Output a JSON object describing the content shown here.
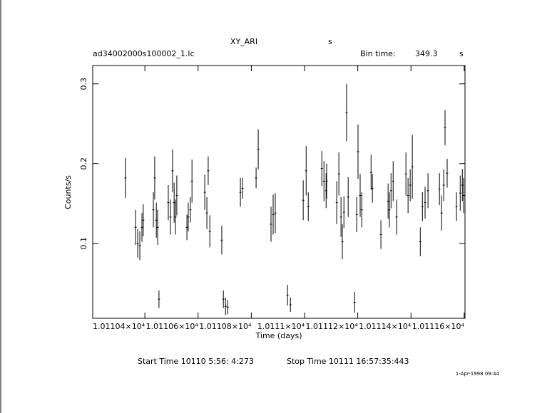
{
  "chart_data": {
    "type": "scatter",
    "title": "XY_ARI",
    "title_unit": "s",
    "file_name": "ad34002000s100002_1.lc",
    "bin_time_label": "Bin time:",
    "bin_time": 349.3,
    "bin_time_unit": "s",
    "ylabel": "Counts/s",
    "xlabel": "Time (days)",
    "start_time": "Start Time 10110  5:56: 4:273",
    "stop_time": "Stop Time 10111 16:57:35:443",
    "date_stamp": "1-Apr-1998 09:44",
    "xlim": [
      10110.204,
      10111.603
    ],
    "xticks": [
      {
        "value": 10110.4,
        "label": "1.01104×10⁴"
      },
      {
        "value": 10110.6,
        "label": "1.01106×10⁴"
      },
      {
        "value": 10110.8,
        "label": "1.01108×10⁴"
      },
      {
        "value": 10111.0,
        "label": "1.0111×10⁴"
      },
      {
        "value": 10111.2,
        "label": "1.01112×10⁴"
      },
      {
        "value": 10111.4,
        "label": "1.01114×10⁴"
      },
      {
        "value": 10111.6,
        "label": "1.01116×10⁴"
      }
    ],
    "ylim": [
      0.006,
      0.323
    ],
    "yticks": [
      0.1,
      0.2,
      0.3
    ],
    "color": "#000000",
    "x": [
      10110.327,
      10110.365,
      10110.373,
      10110.381,
      10110.389,
      10110.394,
      10110.432,
      10110.437,
      10110.443,
      10110.448,
      10110.453,
      10110.488,
      10110.496,
      10110.504,
      10110.51,
      10110.515,
      10110.52,
      10110.558,
      10110.563,
      10110.571,
      10110.577,
      10110.625,
      10110.633,
      10110.638,
      10110.644,
      10110.689,
      10110.695,
      10110.703,
      10110.711,
      10110.759,
      10110.767,
      10110.818,
      10110.826,
      10110.874,
      10110.882,
      10110.89,
      10110.936,
      10110.947,
      10110.995,
      10111.006,
      10111.014,
      10111.065,
      10111.073,
      10111.081,
      10111.083,
      10111.121,
      10111.129,
      10111.137,
      10111.142,
      10111.148,
      10111.158,
      10111.164,
      10111.188,
      10111.196,
      10111.201,
      10111.209,
      10111.215,
      10111.25,
      10111.255,
      10111.287,
      10111.314,
      10111.319,
      10111.325,
      10111.333,
      10111.346,
      10111.381,
      10111.389,
      10111.397,
      10111.405,
      10111.435,
      10111.443,
      10111.453,
      10111.464,
      10111.507,
      10111.515,
      10111.523,
      10111.528,
      10111.536,
      10111.571,
      10111.585,
      10111.593,
      10111.598
    ],
    "values": [
      0.182,
      0.12,
      0.1,
      0.097,
      0.12,
      0.129,
      0.142,
      0.182,
      0.129,
      0.12,
      0.03,
      0.151,
      0.133,
      0.191,
      0.151,
      0.133,
      0.16,
      0.12,
      0.133,
      0.142,
      0.178,
      0.164,
      0.138,
      0.191,
      0.115,
      0.104,
      0.03,
      0.021,
      0.02,
      0.164,
      0.169,
      0.182,
      0.218,
      0.124,
      0.136,
      0.138,
      0.035,
      0.023,
      0.154,
      0.191,
      0.146,
      0.194,
      0.178,
      0.166,
      0.178,
      0.151,
      0.187,
      0.133,
      0.102,
      0.139,
      0.264,
      0.158,
      0.026,
      0.136,
      0.215,
      0.16,
      0.142,
      0.189,
      0.169,
      0.111,
      0.153,
      0.142,
      0.166,
      0.178,
      0.133,
      0.187,
      0.16,
      0.173,
      0.196,
      0.102,
      0.146,
      0.151,
      0.166,
      0.168,
      0.138,
      0.173,
      0.245,
      0.188,
      0.146,
      0.163,
      0.173,
      0.16
    ],
    "errors": [
      0.025,
      0.022,
      0.018,
      0.018,
      0.018,
      0.02,
      0.022,
      0.027,
      0.022,
      0.022,
      0.011,
      0.022,
      0.022,
      0.027,
      0.025,
      0.022,
      0.025,
      0.016,
      0.018,
      0.016,
      0.027,
      0.022,
      0.02,
      0.018,
      0.02,
      0.018,
      0.011,
      0.011,
      0.009,
      0.018,
      0.013,
      0.013,
      0.025,
      0.022,
      0.025,
      0.025,
      0.013,
      0.009,
      0.025,
      0.031,
      0.018,
      0.022,
      0.025,
      0.022,
      0.022,
      0.027,
      0.027,
      0.025,
      0.022,
      0.02,
      0.036,
      0.025,
      0.013,
      0.022,
      0.034,
      0.027,
      0.022,
      0.022,
      0.018,
      0.018,
      0.022,
      0.022,
      0.022,
      0.025,
      0.022,
      0.027,
      0.022,
      0.02,
      0.04,
      0.018,
      0.018,
      0.02,
      0.022,
      0.02,
      0.022,
      0.02,
      0.022,
      0.018,
      0.018,
      0.022,
      0.02,
      0.022
    ]
  }
}
